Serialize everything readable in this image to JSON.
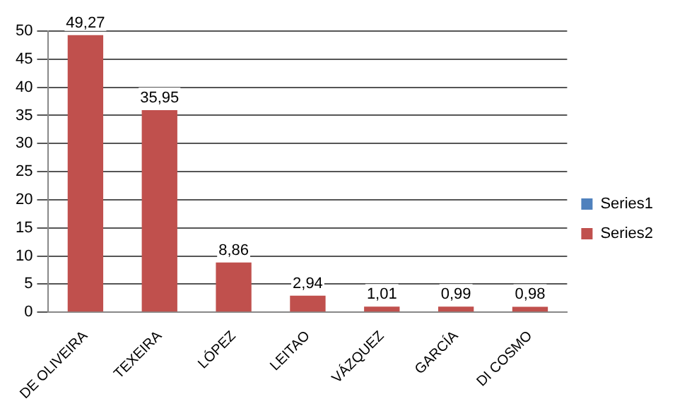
{
  "chart_data": {
    "type": "bar",
    "categories": [
      "DE OLIVEIRA",
      "TEXEIRA",
      "LÓPEZ",
      "LEITAO",
      "VÁZQUEZ",
      "GARCÍA",
      "DI COSMO"
    ],
    "series": [
      {
        "name": "Series1",
        "color": "#4f81bd",
        "values": [
          null,
          null,
          null,
          null,
          null,
          null,
          null
        ]
      },
      {
        "name": "Series2",
        "color": "#c0504d",
        "values": [
          49.27,
          35.95,
          8.86,
          2.94,
          1.01,
          0.99,
          0.98
        ],
        "value_labels": [
          "49,27",
          "35,95",
          "8,86",
          "2,94",
          "1,01",
          "0,99",
          "0,98"
        ]
      }
    ],
    "ylim": [
      0,
      50
    ],
    "yticks": [
      0,
      5,
      10,
      15,
      20,
      25,
      30,
      35,
      40,
      45,
      50
    ],
    "grid": "y",
    "legend": "right"
  }
}
